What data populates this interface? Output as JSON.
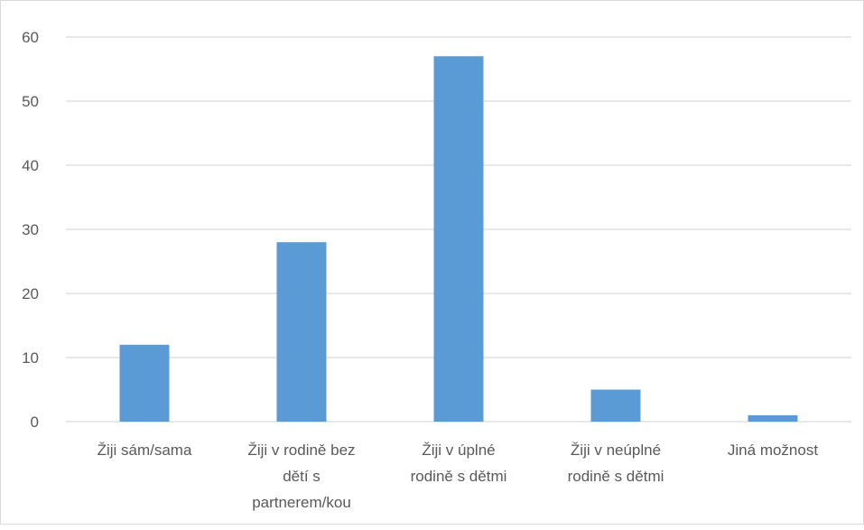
{
  "chart_data": {
    "type": "bar",
    "title": "",
    "xlabel": "",
    "ylabel": "",
    "categories": [
      "Žiji sám/sama",
      "Žiji v rodině bez dětí s partnerem/kou",
      "Žiji v úplné rodině s dětmi",
      "Žiji v neúplné rodině s dětmi",
      "Jiná možnost"
    ],
    "category_lines": [
      [
        "Žiji sám/sama"
      ],
      [
        "Žiji v rodině bez",
        "dětí s",
        "partnerem/kou"
      ],
      [
        "Žiji v úplné",
        "rodině s dětmi"
      ],
      [
        "Žiji v neúplné",
        "rodině s dětmi"
      ],
      [
        "Jiná možnost"
      ]
    ],
    "values": [
      12,
      28,
      57,
      5,
      1
    ],
    "ylim": [
      0,
      60
    ],
    "yticks": [
      0,
      10,
      20,
      30,
      40,
      50,
      60
    ],
    "grid": true,
    "legend": false,
    "colors": {
      "bar": "#5B9BD5",
      "grid": "#d9d9d9",
      "axis": "#d9d9d9",
      "text": "#595959"
    }
  }
}
